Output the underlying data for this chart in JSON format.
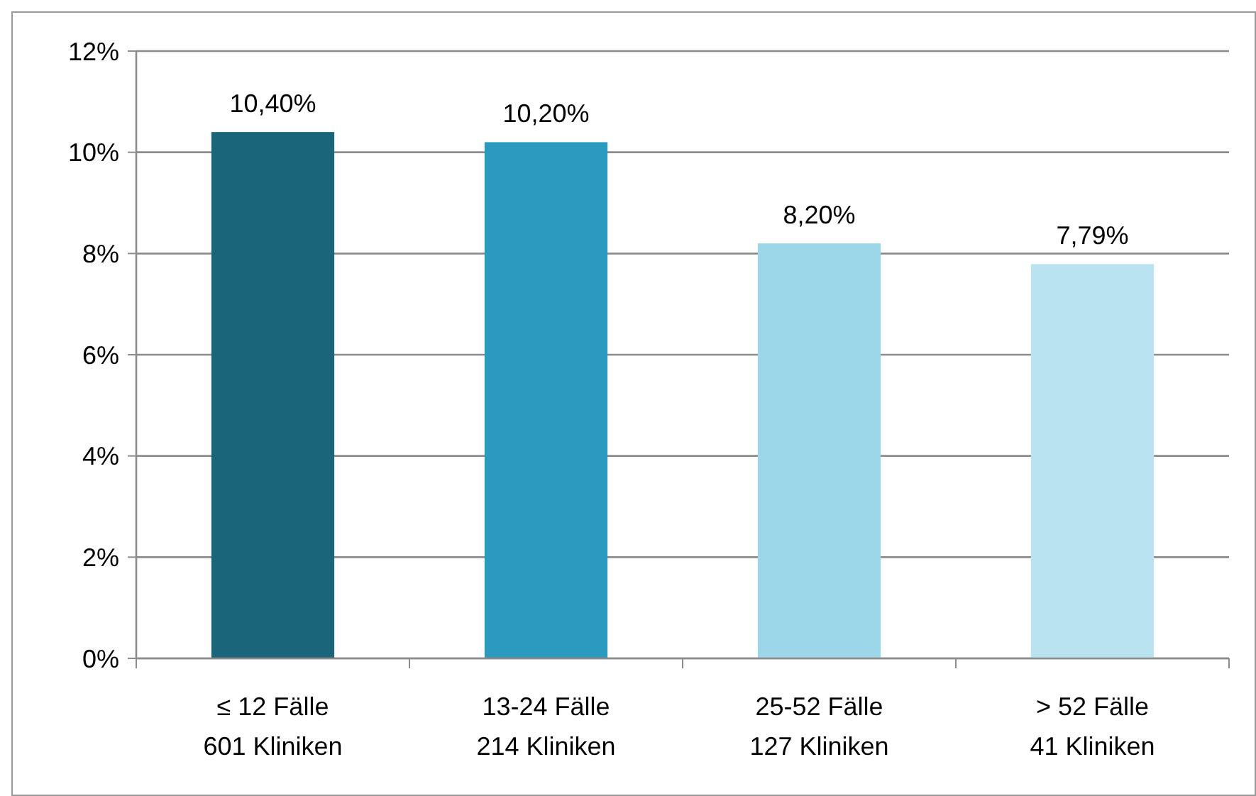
{
  "chart_data": {
    "type": "bar",
    "categories": [
      "≤ 12 Fälle\n601 Kliniken",
      "13-24 Fälle\n214 Kliniken",
      "25-52 Fälle\n127 Kliniken",
      "> 52 Fälle\n41 Kliniken"
    ],
    "values": [
      10.4,
      10.2,
      8.2,
      7.79
    ],
    "colors": [
      "#1b657a",
      "#2a9bbf",
      "#9bd7e8",
      "#b9e3f0"
    ],
    "value_labels": [
      "10,40%",
      "10,20%",
      "8,20%",
      "7,79%"
    ],
    "ylim": [
      0,
      12
    ],
    "yticks": [
      {
        "value": 0,
        "label": "0%"
      },
      {
        "value": 2,
        "label": "2%"
      },
      {
        "value": 4,
        "label": "4%"
      },
      {
        "value": 6,
        "label": "6%"
      },
      {
        "value": 8,
        "label": "8%"
      },
      {
        "value": 10,
        "label": "10%"
      },
      {
        "value": 12,
        "label": "12%"
      }
    ],
    "grid": "y"
  }
}
